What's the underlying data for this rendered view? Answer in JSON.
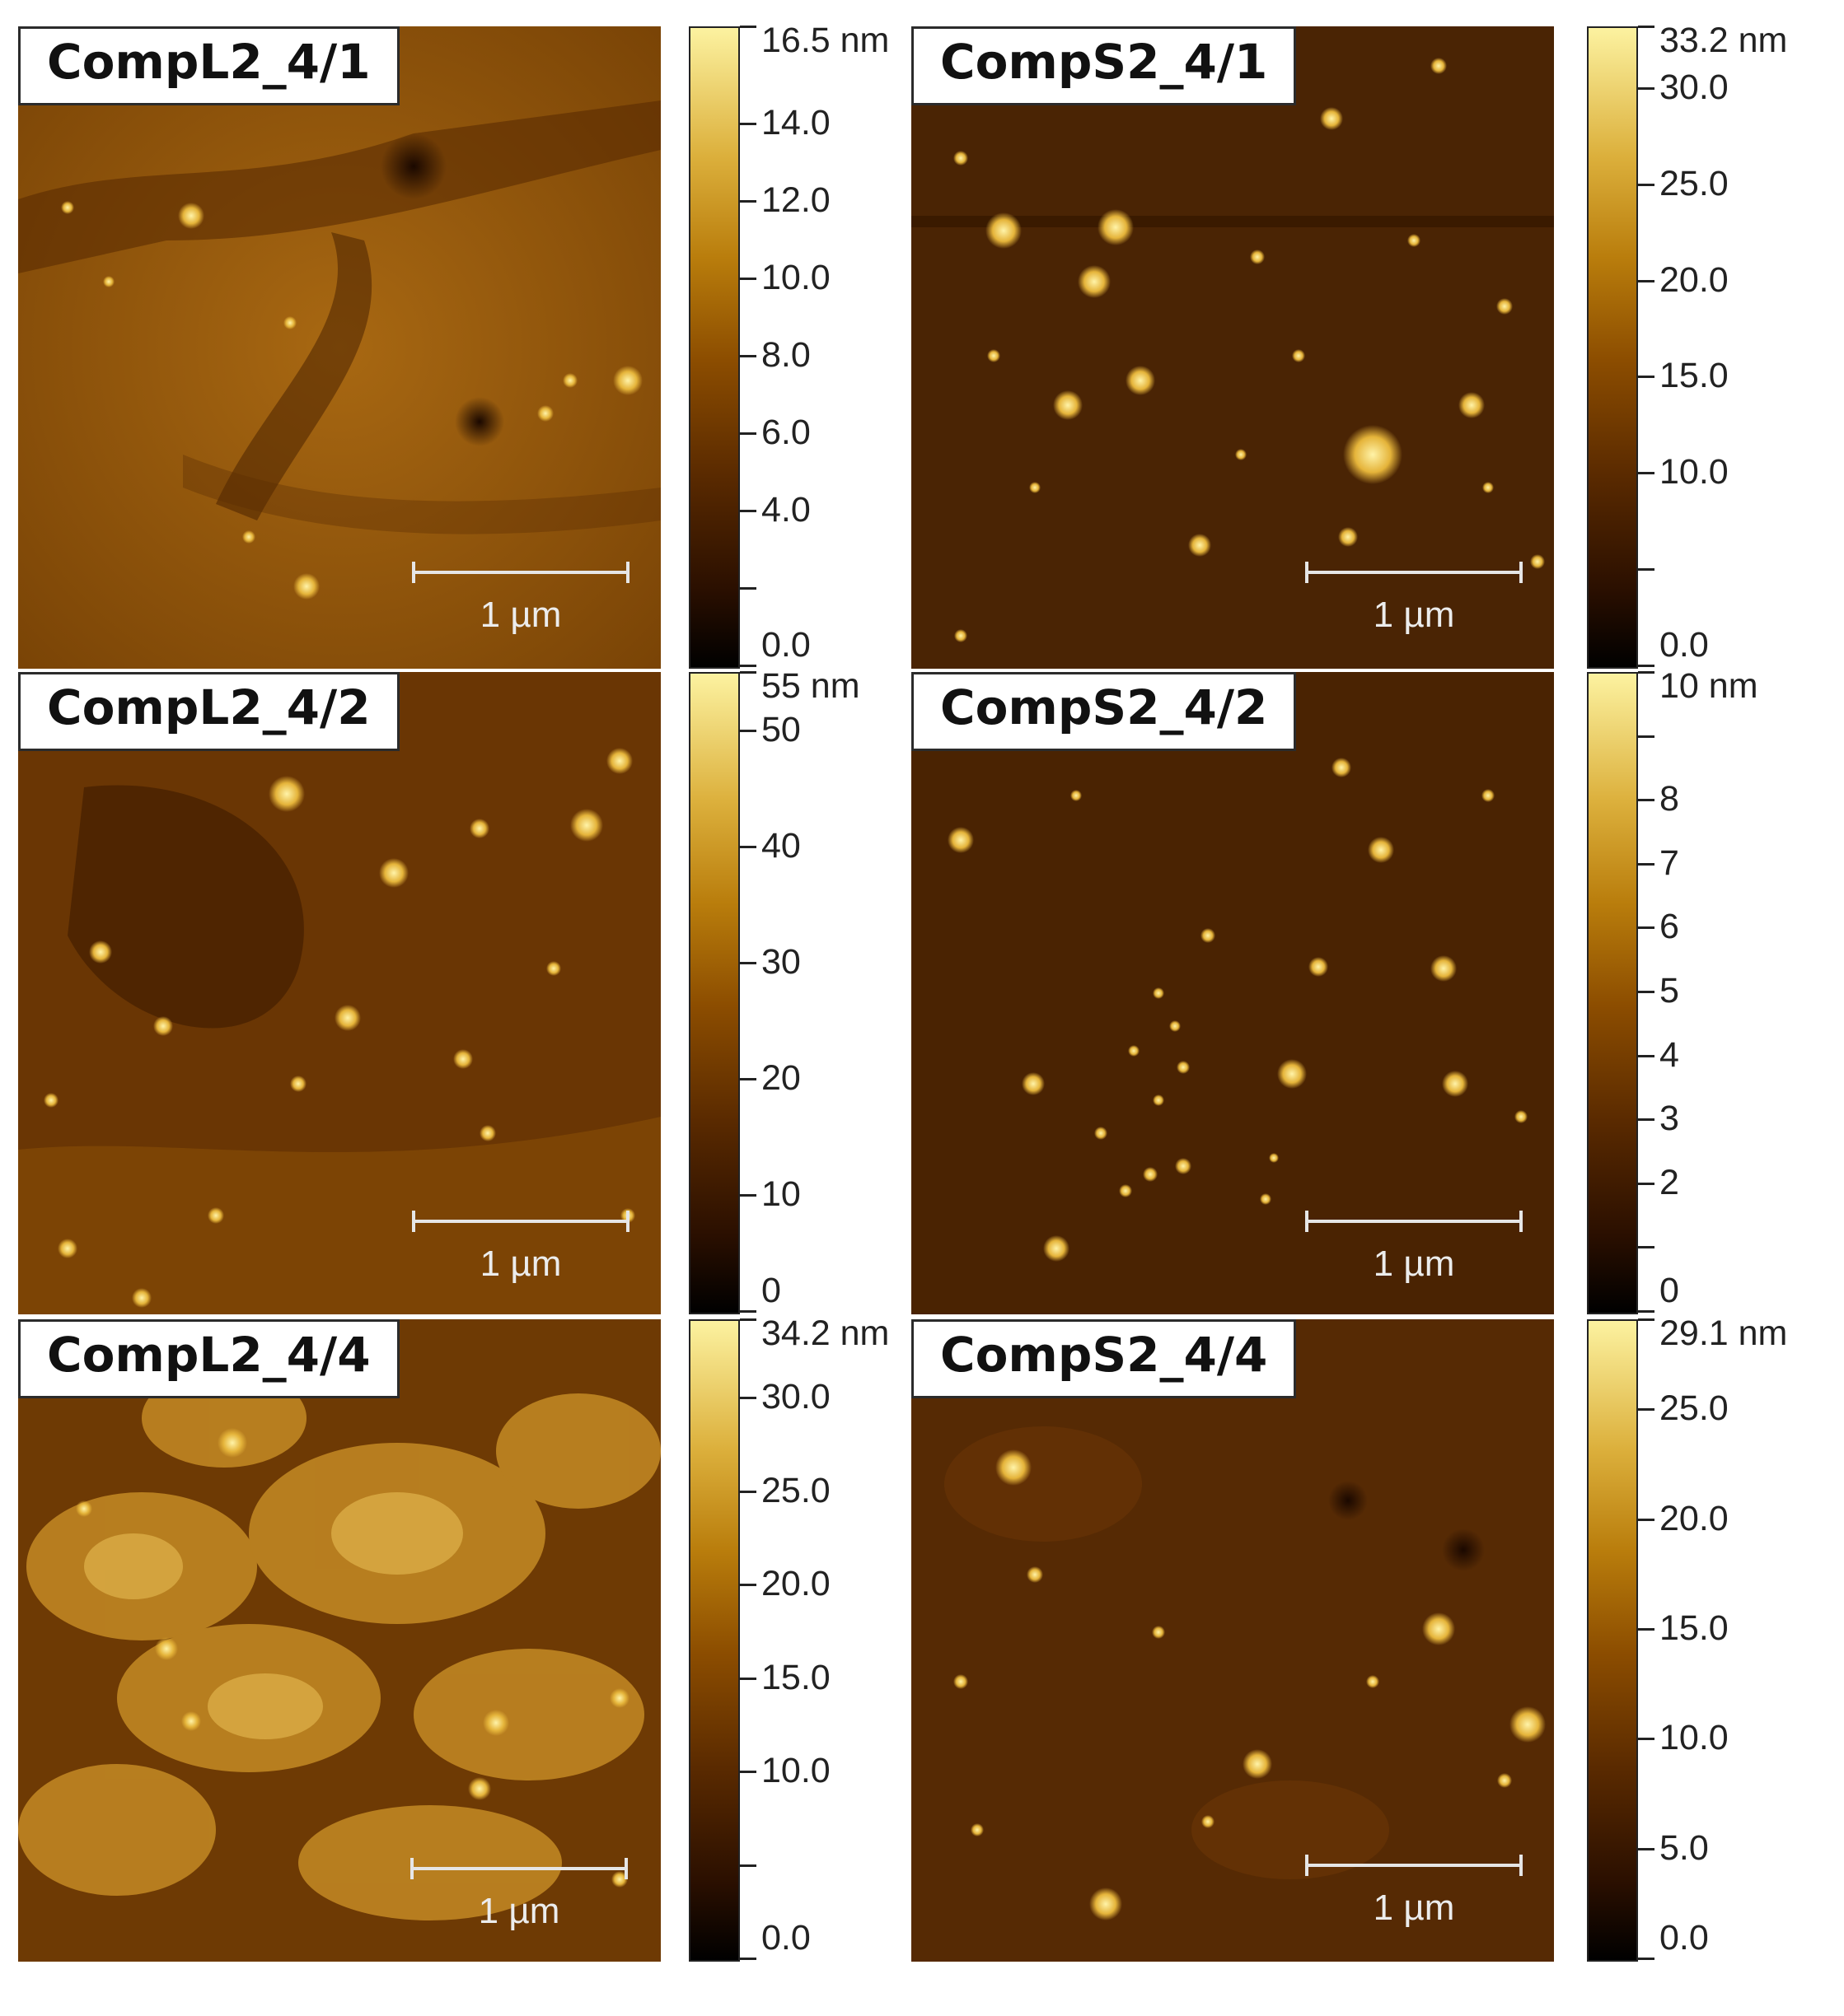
{
  "panels": [
    {
      "id": "l41",
      "label": "CompL2_4/1",
      "scale_bar": "1 µm",
      "colorbar": {
        "max_label": "16.5 nm",
        "ticks": [
          {
            "label": "16.5 nm",
            "value": 16.5
          },
          {
            "label": "14.0",
            "value": 14.0
          },
          {
            "label": "12.0",
            "value": 12.0
          },
          {
            "label": "10.0",
            "value": 10.0
          },
          {
            "label": "8.0",
            "value": 8.0
          },
          {
            "label": "6.0",
            "value": 6.0
          },
          {
            "label": "4.0",
            "value": 4.0
          },
          {
            "label": "0.0",
            "value": 0.0
          }
        ],
        "minor": [
          2.0
        ],
        "max": 16.5
      }
    },
    {
      "id": "s41",
      "label": "CompS2_4/1",
      "scale_bar": "1 µm",
      "colorbar": {
        "max_label": "33.2 nm",
        "ticks": [
          {
            "label": "33.2 nm",
            "value": 33.2
          },
          {
            "label": "30.0",
            "value": 30.0
          },
          {
            "label": "25.0",
            "value": 25.0
          },
          {
            "label": "20.0",
            "value": 20.0
          },
          {
            "label": "15.0",
            "value": 15.0
          },
          {
            "label": "10.0",
            "value": 10.0
          },
          {
            "label": "0.0",
            "value": 0.0
          }
        ],
        "minor": [
          5.0
        ],
        "max": 33.2
      }
    },
    {
      "id": "l42",
      "label": "CompL2_4/2",
      "scale_bar": "1 µm",
      "colorbar": {
        "max_label": "55 nm",
        "ticks": [
          {
            "label": "55 nm",
            "value": 55
          },
          {
            "label": "50",
            "value": 50
          },
          {
            "label": "40",
            "value": 40
          },
          {
            "label": "30",
            "value": 30
          },
          {
            "label": "20",
            "value": 20
          },
          {
            "label": "10",
            "value": 10
          },
          {
            "label": "0",
            "value": 0
          }
        ],
        "minor": [],
        "max": 55
      }
    },
    {
      "id": "s42",
      "label": "CompS2_4/2",
      "scale_bar": "1 µm",
      "colorbar": {
        "max_label": "10 nm",
        "ticks": [
          {
            "label": "10 nm",
            "value": 10
          },
          {
            "label": "8",
            "value": 8
          },
          {
            "label": "7",
            "value": 7
          },
          {
            "label": "6",
            "value": 6
          },
          {
            "label": "5",
            "value": 5
          },
          {
            "label": "4",
            "value": 4
          },
          {
            "label": "3",
            "value": 3
          },
          {
            "label": "2",
            "value": 2
          },
          {
            "label": "0",
            "value": 0
          }
        ],
        "minor": [
          1,
          9
        ],
        "max": 10
      }
    },
    {
      "id": "l44",
      "label": "CompL2_4/4",
      "scale_bar": "1 µm",
      "colorbar": {
        "max_label": "34.2 nm",
        "ticks": [
          {
            "label": "34.2 nm",
            "value": 34.2
          },
          {
            "label": "30.0",
            "value": 30.0
          },
          {
            "label": "25.0",
            "value": 25.0
          },
          {
            "label": "20.0",
            "value": 20.0
          },
          {
            "label": "15.0",
            "value": 15.0
          },
          {
            "label": "10.0",
            "value": 10.0
          },
          {
            "label": "0.0",
            "value": 0.0
          }
        ],
        "minor": [
          5.0
        ],
        "max": 34.2
      }
    },
    {
      "id": "s44",
      "label": "CompS2_4/4",
      "scale_bar": "1 µm",
      "colorbar": {
        "max_label": "29.1 nm",
        "ticks": [
          {
            "label": "29.1 nm",
            "value": 29.1
          },
          {
            "label": "25.0",
            "value": 25.0
          },
          {
            "label": "20.0",
            "value": 20.0
          },
          {
            "label": "15.0",
            "value": 15.0
          },
          {
            "label": "10.0",
            "value": 10.0
          },
          {
            "label": "5.0",
            "value": 5.0
          },
          {
            "label": "0.0",
            "value": 0.0
          }
        ],
        "minor": [],
        "max": 29.1
      }
    }
  ],
  "colors": {
    "dark": "#2a1202",
    "mid": "#8a4a08",
    "bright": "#f7d66a"
  }
}
